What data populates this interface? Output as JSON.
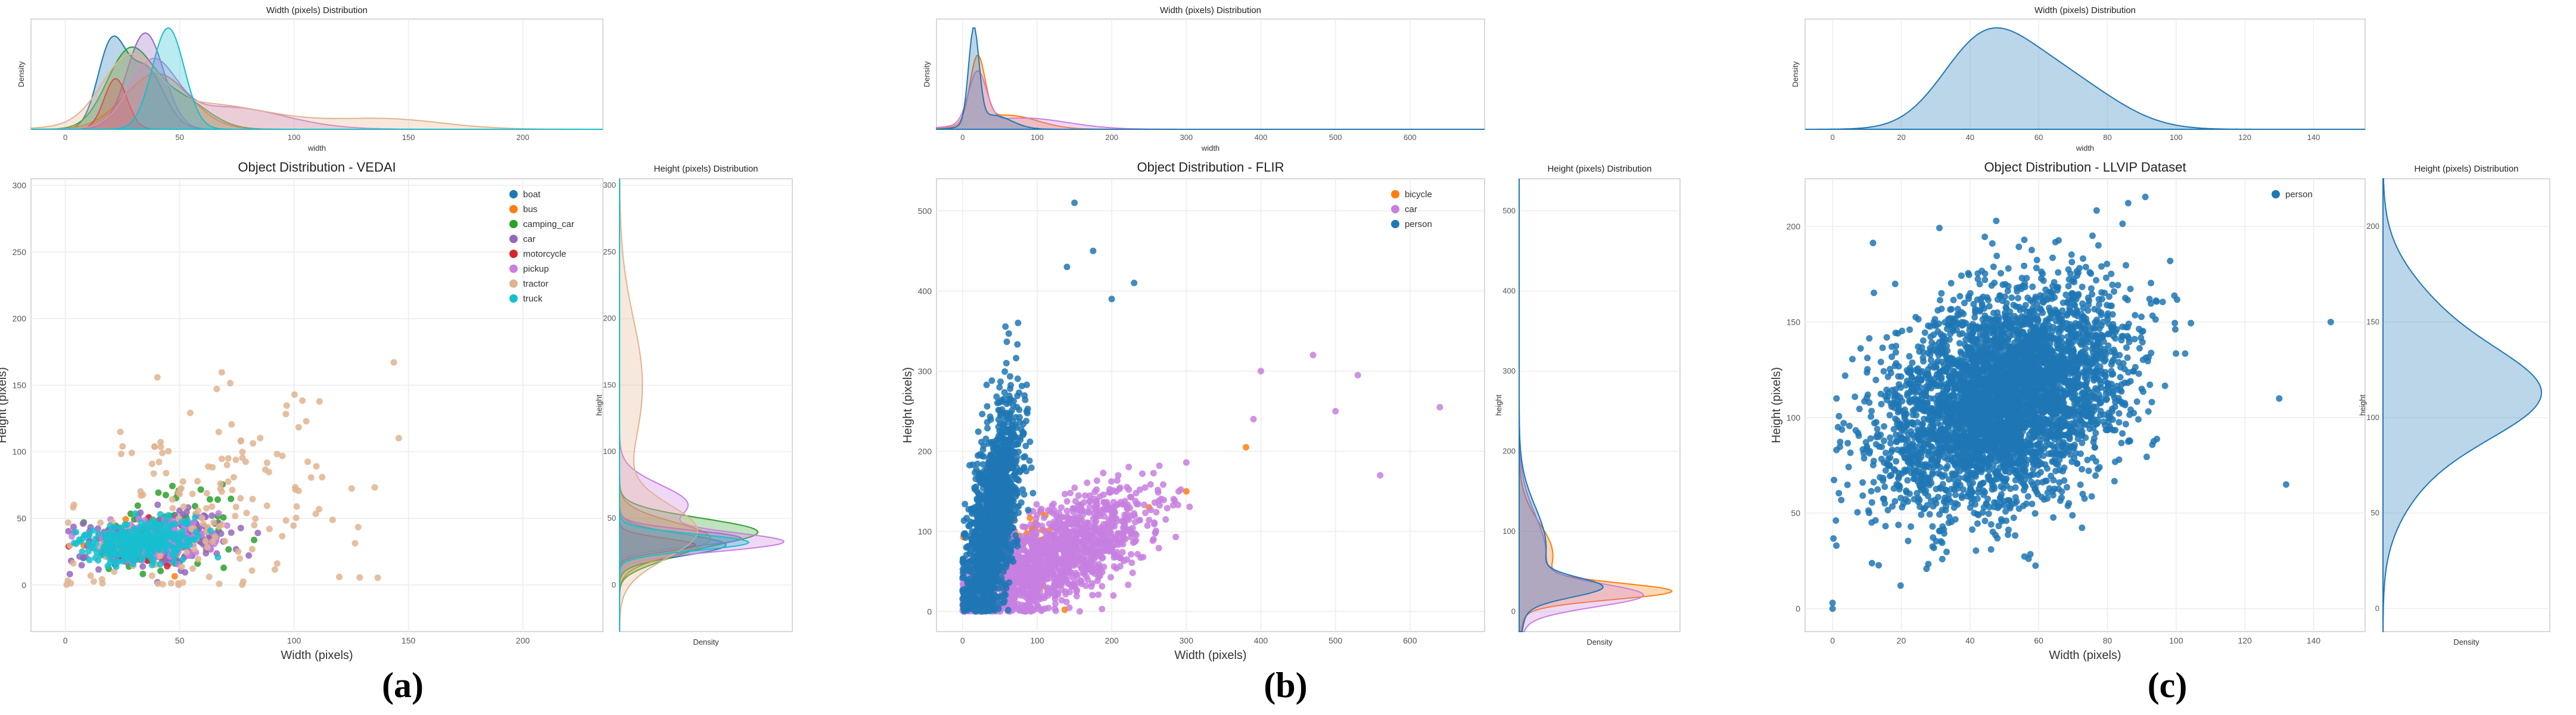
{
  "chart_data": [
    {
      "panel": "a",
      "panel_label": "(a)",
      "type": "scatter",
      "title": "Object Distribution - VEDAI",
      "xlabel": "Width (pixels)",
      "ylabel": "Height (pixels)",
      "xlim": [
        -15,
        235
      ],
      "ylim": [
        -35,
        305
      ],
      "xticks": [
        0,
        50,
        100,
        150,
        200
      ],
      "yticks": [
        0,
        50,
        100,
        150,
        200,
        250,
        300
      ],
      "legend_position": "top-right",
      "series": [
        {
          "name": "boat",
          "color": "#1f77b4",
          "cx": 28,
          "cy": 30,
          "sx": 8,
          "sy": 8,
          "n": 25,
          "rho": 0.2,
          "seed": 11
        },
        {
          "name": "bus",
          "color": "#ff7f0e",
          "cx": 40,
          "cy": 34,
          "sx": 12,
          "sy": 10,
          "n": 30,
          "rho": 0.3,
          "seed": 12
        },
        {
          "name": "camping_car",
          "color": "#2ca02c",
          "cx": 45,
          "cy": 42,
          "sx": 16,
          "sy": 16,
          "n": 90,
          "rho": 0.3,
          "seed": 13
        },
        {
          "name": "car",
          "color": "#9467bd",
          "cx": 42,
          "cy": 34,
          "sx": 16,
          "sy": 10,
          "n": 260,
          "rho": 0.2,
          "seed": 14
        },
        {
          "name": "motorcycle",
          "color": "#d62728",
          "cx": 33,
          "cy": 30,
          "sx": 10,
          "sy": 8,
          "n": 20,
          "rho": 0.2,
          "seed": 15
        },
        {
          "name": "pickup",
          "color": "#c77fe0",
          "cx": 40,
          "cy": 34,
          "sx": 12,
          "sy": 8,
          "n": 160,
          "rho": 0.2,
          "seed": 16
        },
        {
          "name": "tractor",
          "color": "#e0b490",
          "cx": 60,
          "cy": 55,
          "sx": 32,
          "sy": 40,
          "n": 170,
          "rho": 0.3,
          "seed": 17
        },
        {
          "name": "truck",
          "color": "#17becf",
          "cx": 32,
          "cy": 32,
          "sx": 12,
          "sy": 8,
          "n": 320,
          "rho": 0.2,
          "seed": 18
        }
      ],
      "top_density": {
        "title": "Width (pixels) Distribution",
        "xlabel": "width",
        "ylabel": "Density",
        "xticks": [
          0,
          50,
          100,
          150,
          200
        ],
        "xlim": [
          -15,
          235
        ],
        "curves": [
          {
            "name": "boat",
            "color": "#1f77b4",
            "peaks": [
              [
                20,
                6,
                0.8
              ],
              [
                35,
                8,
                0.6
              ]
            ]
          },
          {
            "name": "bus",
            "color": "#ff7f0e",
            "peaks": [
              [
                40,
                14,
                0.55
              ]
            ]
          },
          {
            "name": "camping_car",
            "color": "#2ca02c",
            "peaks": [
              [
                28,
                10,
                0.75
              ],
              [
                50,
                12,
                0.3
              ]
            ]
          },
          {
            "name": "car",
            "color": "#9467bd",
            "peaks": [
              [
                35,
                8,
                0.95
              ]
            ]
          },
          {
            "name": "motorcycle",
            "color": "#d62728",
            "peaks": [
              [
                22,
                5,
                0.5
              ]
            ]
          },
          {
            "name": "pickup",
            "color": "#c77fe0",
            "peaks": [
              [
                38,
                10,
                0.6
              ],
              [
                70,
                25,
                0.22
              ]
            ]
          },
          {
            "name": "tractor",
            "color": "#e0b490",
            "peaks": [
              [
                28,
                12,
                0.6
              ],
              [
                60,
                30,
                0.25
              ],
              [
                140,
                25,
                0.1
              ]
            ]
          },
          {
            "name": "truck",
            "color": "#17becf",
            "peaks": [
              [
                45,
                7,
                1.0
              ]
            ]
          }
        ]
      },
      "right_density": {
        "title": "Height (pixels) Distribution",
        "xlabel": "Density",
        "ylabel": "height",
        "yticks": [
          0,
          50,
          100,
          150,
          200,
          250,
          300
        ],
        "ylim": [
          -35,
          305
        ],
        "curves": [
          {
            "name": "boat",
            "color": "#1f77b4",
            "peaks": [
              [
                30,
                8,
                0.7
              ]
            ]
          },
          {
            "name": "bus",
            "color": "#ff7f0e",
            "peaks": [
              [
                35,
                12,
                0.6
              ]
            ]
          },
          {
            "name": "camping_car",
            "color": "#2ca02c",
            "peaks": [
              [
                40,
                10,
                0.9
              ],
              [
                20,
                8,
                0.2
              ]
            ]
          },
          {
            "name": "car",
            "color": "#9467bd",
            "peaks": [
              [
                35,
                6,
                0.8
              ]
            ]
          },
          {
            "name": "motorcycle",
            "color": "#d62728",
            "peaks": [
              [
                30,
                5,
                0.5
              ]
            ]
          },
          {
            "name": "pickup",
            "color": "#c77fe0",
            "peaks": [
              [
                32,
                7,
                1.0
              ],
              [
                60,
                15,
                0.45
              ]
            ]
          },
          {
            "name": "tractor",
            "color": "#e0b490",
            "peaks": [
              [
                40,
                20,
                0.5
              ],
              [
                150,
                50,
                0.15
              ]
            ]
          },
          {
            "name": "truck",
            "color": "#17becf",
            "peaks": [
              [
                32,
                6,
                0.85
              ]
            ]
          }
        ]
      }
    },
    {
      "panel": "b",
      "panel_label": "(b)",
      "type": "scatter",
      "title": "Object Distribution - FLIR",
      "xlabel": "Width (pixels)",
      "ylabel": "Height (pixels)",
      "xlim": [
        -35,
        700
      ],
      "ylim": [
        -25,
        540
      ],
      "xticks": [
        0,
        100,
        200,
        300,
        400,
        500,
        600
      ],
      "yticks": [
        0,
        100,
        200,
        300,
        400,
        500
      ],
      "legend_position": "top-right",
      "series": [
        {
          "name": "bicycle",
          "color": "#ff7f0e",
          "cx": 80,
          "cy": 70,
          "sx": 40,
          "sy": 30,
          "n": 80,
          "rho": 0.4,
          "seed": 21,
          "extra": [
            [
              380,
              205
            ],
            [
              300,
              150
            ],
            [
              250,
              130
            ]
          ]
        },
        {
          "name": "car",
          "color": "#c77fe0",
          "cx": 110,
          "cy": 60,
          "sx": 70,
          "sy": 45,
          "n": 1500,
          "rho": 0.75,
          "seed": 22,
          "extra": [
            [
              400,
              300
            ],
            [
              500,
              250
            ],
            [
              560,
              170
            ],
            [
              640,
              255
            ],
            [
              530,
              295
            ],
            [
              470,
              320
            ],
            [
              390,
              240
            ]
          ]
        },
        {
          "name": "person",
          "color": "#1f77b4",
          "cx": 40,
          "cy": 110,
          "sx": 18,
          "sy": 70,
          "n": 1500,
          "rho": 0.55,
          "seed": 23,
          "extra": [
            [
              150,
              510
            ],
            [
              175,
              450
            ],
            [
              230,
              410
            ],
            [
              140,
              430
            ],
            [
              200,
              390
            ]
          ]
        }
      ],
      "top_density": {
        "title": "Width (pixels) Distribution",
        "xlabel": "width",
        "ylabel": "Density",
        "xticks": [
          0,
          100,
          200,
          300,
          400,
          500,
          600
        ],
        "xlim": [
          -35,
          700
        ],
        "curves": [
          {
            "name": "bicycle",
            "color": "#ff7f0e",
            "peaks": [
              [
                20,
                10,
                0.7
              ],
              [
                60,
                40,
                0.15
              ]
            ]
          },
          {
            "name": "car",
            "color": "#c77fe0",
            "peaks": [
              [
                20,
                12,
                0.55
              ],
              [
                80,
                60,
                0.12
              ]
            ]
          },
          {
            "name": "person",
            "color": "#1f77b4",
            "peaks": [
              [
                15,
                7,
                1.0
              ],
              [
                40,
                25,
                0.15
              ]
            ]
          }
        ]
      },
      "right_density": {
        "title": "Height (pixels) Distribution",
        "xlabel": "Density",
        "ylabel": "height",
        "yticks": [
          0,
          100,
          200,
          300,
          400,
          500
        ],
        "ylim": [
          -25,
          540
        ],
        "curves": [
          {
            "name": "bicycle",
            "color": "#ff7f0e",
            "peaks": [
              [
                25,
                10,
                1.0
              ],
              [
                70,
                40,
                0.25
              ]
            ]
          },
          {
            "name": "car",
            "color": "#c77fe0",
            "peaks": [
              [
                20,
                14,
                0.8
              ],
              [
                70,
                50,
                0.2
              ]
            ]
          },
          {
            "name": "person",
            "color": "#1f77b4",
            "peaks": [
              [
                30,
                12,
                0.5
              ],
              [
                80,
                50,
                0.2
              ]
            ]
          }
        ]
      }
    },
    {
      "panel": "c",
      "panel_label": "(c)",
      "type": "scatter",
      "title": "Object Distribution - LLVIP Dataset",
      "xlabel": "Width (pixels)",
      "ylabel": "Height (pixels)",
      "xlim": [
        -8,
        155
      ],
      "ylim": [
        -12,
        225
      ],
      "xticks": [
        0,
        20,
        40,
        60,
        80,
        100,
        120,
        140
      ],
      "yticks": [
        0,
        50,
        100,
        150,
        200
      ],
      "legend_position": "top-right",
      "series": [
        {
          "name": "person",
          "color": "#1f77b4",
          "cx": 50,
          "cy": 110,
          "sx": 17,
          "sy": 28,
          "n": 4200,
          "rho": 0.35,
          "seed": 31,
          "extra": [
            [
              0,
              3
            ],
            [
              0,
              0
            ],
            [
              145,
              150
            ],
            [
              130,
              110
            ],
            [
              132,
              65
            ]
          ]
        }
      ],
      "top_density": {
        "title": "Width (pixels) Distribution",
        "xlabel": "width",
        "ylabel": "Density",
        "xticks": [
          0,
          20,
          40,
          60,
          80,
          100,
          120,
          140
        ],
        "xlim": [
          -8,
          155
        ],
        "curves": [
          {
            "name": "person",
            "color": "#1f77b4",
            "peaks": [
              [
                43,
                12,
                0.8
              ],
              [
                62,
                14,
                0.55
              ],
              [
                80,
                12,
                0.12
              ]
            ]
          }
        ]
      },
      "right_density": {
        "title": "Height (pixels) Distribution",
        "xlabel": "Density",
        "ylabel": "height",
        "yticks": [
          0,
          50,
          100,
          150,
          200
        ],
        "ylim": [
          -12,
          225
        ],
        "curves": [
          {
            "name": "person",
            "color": "#1f77b4",
            "peaks": [
              [
                112,
                22,
                1.0
              ],
              [
                150,
                25,
                0.35
              ],
              [
                75,
                25,
                0.25
              ]
            ]
          }
        ]
      }
    }
  ]
}
